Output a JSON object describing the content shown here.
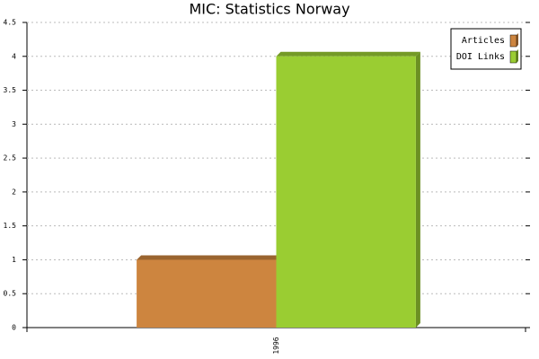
{
  "chart_data": {
    "type": "bar",
    "title": "MIC: Statistics Norway",
    "categories": [
      "1996"
    ],
    "series": [
      {
        "name": "Articles",
        "color": "#cd853f",
        "values": [
          1
        ]
      },
      {
        "name": "DOI Links",
        "color": "#9acd32",
        "values": [
          4
        ]
      }
    ],
    "ylim": [
      0,
      4.5
    ],
    "yticks": [
      0,
      0.5,
      1,
      1.5,
      2,
      2.5,
      3,
      3.5,
      4,
      4.5
    ],
    "grid": true,
    "legend": "top-right"
  }
}
